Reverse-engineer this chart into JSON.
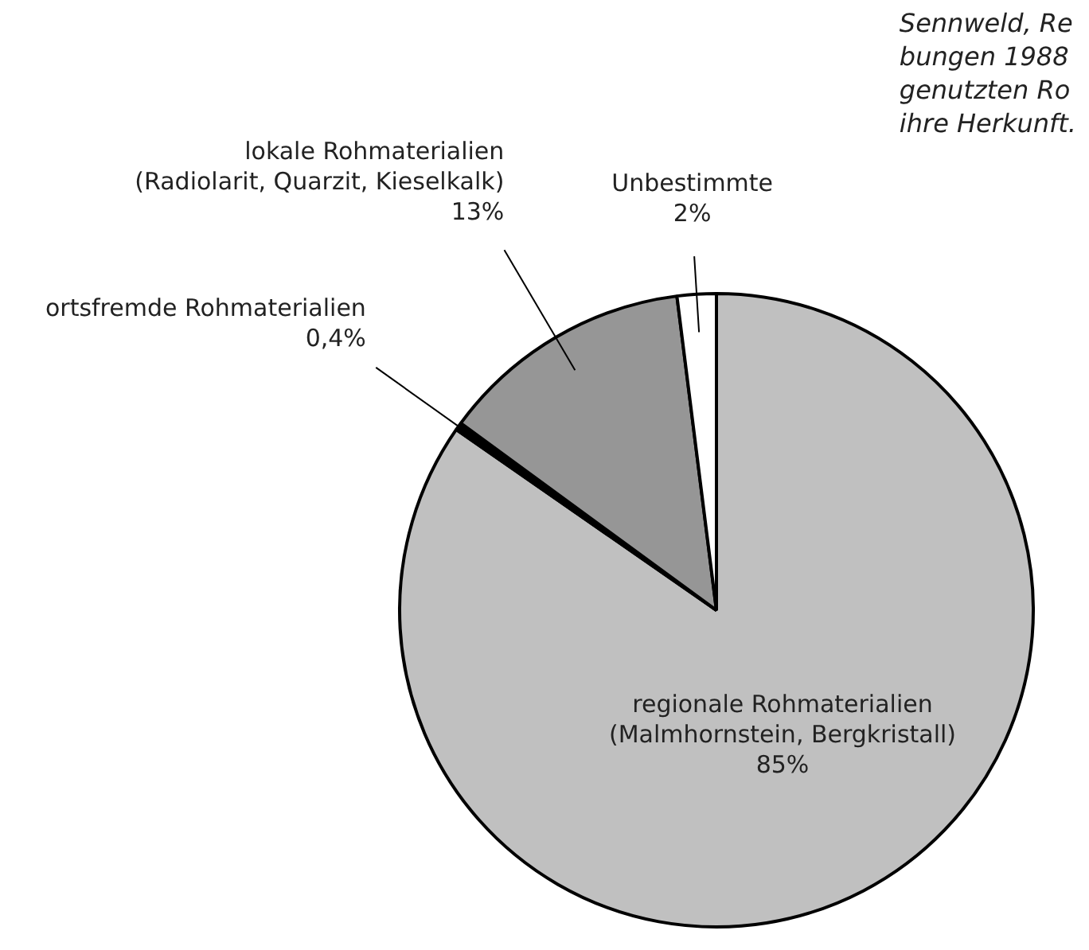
{
  "chart_data": {
    "type": "pie",
    "categories": [
      "regionale Rohmaterialien\n(Malmhornstein, Bergkristall)",
      "ortsfremde Rohmaterialien",
      "lokale Rohmaterialien\n(Radiolarit, Quarzit, Kieselkalk)",
      "Unbestimmte"
    ],
    "values": [
      85,
      0.4,
      13,
      2
    ],
    "value_labels": [
      "85%",
      "0,4%",
      "13%",
      "2%"
    ],
    "colors": [
      "#c0c0c0",
      "#000000",
      "#969696",
      "#ffffff"
    ],
    "annotations": [
      "Sennweld, Re\nbungen 1988\ngenutzten Ro\nihre Herkunft."
    ],
    "legend": false
  }
}
